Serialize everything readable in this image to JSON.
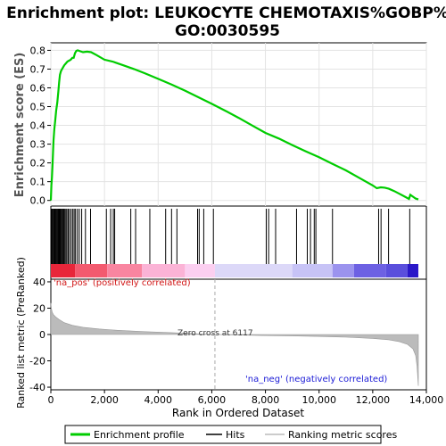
{
  "chart_data": {
    "type": "line",
    "title": "Enrichment plot: LEUKOCYTE CHEMOTAXIS%GOBP%\nGO:0030595",
    "xlabel": "Rank in Ordered Dataset",
    "xlim": [
      0,
      14000
    ],
    "x_ticks": [
      "0",
      "2,000",
      "4,000",
      "6,000",
      "8,000",
      "10,000",
      "12,000",
      "14,000"
    ],
    "x_tick_values": [
      0,
      2000,
      4000,
      6000,
      8000,
      10000,
      12000,
      14000
    ],
    "es_panel": {
      "ylabel": "Enrichment score (ES)",
      "ylim": [
        -0.03,
        0.84
      ],
      "y_ticks": [
        "0.0",
        "0.1",
        "0.2",
        "0.3",
        "0.4",
        "0.5",
        "0.6",
        "0.7",
        "0.8"
      ],
      "y_tick_values": [
        0.0,
        0.1,
        0.2,
        0.3,
        0.4,
        0.5,
        0.6,
        0.7,
        0.8
      ],
      "series": [
        {
          "name": "Enrichment profile",
          "color": "#00cc00",
          "x": [
            0,
            20,
            40,
            60,
            80,
            100,
            130,
            160,
            200,
            240,
            280,
            310,
            340,
            380,
            420,
            460,
            500,
            560,
            620,
            680,
            740,
            800,
            850,
            900,
            950,
            1000,
            1100,
            1200,
            1350,
            1500,
            1700,
            2000,
            2300,
            2700,
            3100,
            3500,
            4000,
            4500,
            5000,
            5500,
            6000,
            6500,
            7000,
            7500,
            8000,
            8500,
            9000,
            9500,
            10000,
            10500,
            11000,
            11500,
            12000,
            12150,
            12300,
            12450,
            12600,
            12800,
            13000,
            13200,
            13350,
            13400,
            13500,
            13600,
            13700
          ],
          "y": [
            0.0,
            0.08,
            0.12,
            0.18,
            0.25,
            0.32,
            0.38,
            0.42,
            0.48,
            0.52,
            0.58,
            0.63,
            0.67,
            0.69,
            0.7,
            0.71,
            0.72,
            0.73,
            0.74,
            0.745,
            0.75,
            0.76,
            0.76,
            0.785,
            0.797,
            0.8,
            0.795,
            0.79,
            0.793,
            0.79,
            0.775,
            0.75,
            0.74,
            0.72,
            0.7,
            0.678,
            0.648,
            0.618,
            0.585,
            0.55,
            0.515,
            0.478,
            0.44,
            0.4,
            0.36,
            0.33,
            0.295,
            0.262,
            0.23,
            0.195,
            0.16,
            0.12,
            0.08,
            0.065,
            0.07,
            0.068,
            0.062,
            0.05,
            0.035,
            0.02,
            0.008,
            0.03,
            0.02,
            0.01,
            0.005
          ]
        }
      ]
    },
    "hits": {
      "name": "Hits",
      "positions": [
        30,
        60,
        90,
        120,
        150,
        180,
        210,
        240,
        270,
        300,
        330,
        360,
        380,
        410,
        450,
        480,
        520,
        560,
        600,
        650,
        700,
        760,
        820,
        870,
        920,
        990,
        1060,
        1150,
        1290,
        1480,
        2070,
        2230,
        2330,
        2380,
        2980,
        3160,
        3690,
        4280,
        4500,
        4700,
        5470,
        5530,
        5700,
        6060,
        8030,
        8120,
        8380,
        9160,
        9560,
        9680,
        9820,
        9880,
        10500,
        12220,
        12310,
        12590,
        13380
      ]
    },
    "rank_panel": {
      "ylabel": "Ranked list metric (PreRanked)",
      "ylim": [
        -42,
        42
      ],
      "y_ticks": [
        "40",
        "20",
        "0",
        "-20",
        "-40"
      ],
      "y_tick_values": [
        40,
        20,
        0,
        -20,
        -40
      ],
      "series": [
        {
          "name": "Ranking metric scores",
          "color": "#bbbbbb",
          "x": [
            0,
            20,
            50,
            100,
            200,
            300,
            500,
            800,
            1200,
            1800,
            2500,
            3500,
            4500,
            5500,
            6117,
            7000,
            8000,
            9000,
            10000,
            11000,
            12000,
            12600,
            13000,
            13300,
            13500,
            13600,
            13650,
            13700
          ],
          "y": [
            24,
            20,
            17,
            15,
            13,
            11.5,
            9,
            7,
            5.5,
            4.2,
            3.2,
            2.2,
            1.4,
            0.5,
            0,
            -0.4,
            -0.8,
            -1.1,
            -1.5,
            -2,
            -3,
            -4,
            -5.5,
            -7.5,
            -11,
            -16,
            -24,
            -39
          ]
        }
      ],
      "annotations": {
        "pos": "'na_pos' (positively correlated)",
        "neg": "'na_neg' (negatively correlated)",
        "zero": "Zero cross at 6117"
      },
      "zero_cross": 6117
    },
    "heatmap_segments": [
      {
        "start": 0,
        "end": 900,
        "color": "#e8263a"
      },
      {
        "start": 900,
        "end": 2100,
        "color": "#f35a6f"
      },
      {
        "start": 2100,
        "end": 3400,
        "color": "#f985a0"
      },
      {
        "start": 3400,
        "end": 5000,
        "color": "#fbb3d6"
      },
      {
        "start": 5000,
        "end": 6117,
        "color": "#fbcff0"
      },
      {
        "start": 6117,
        "end": 9000,
        "color": "#dcd8f8"
      },
      {
        "start": 9000,
        "end": 10500,
        "color": "#c7c3f6"
      },
      {
        "start": 10500,
        "end": 11300,
        "color": "#9b93ee"
      },
      {
        "start": 11300,
        "end": 12500,
        "color": "#6d61e3"
      },
      {
        "start": 12500,
        "end": 13300,
        "color": "#5a4fdc"
      },
      {
        "start": 13300,
        "end": 13700,
        "color": "#2a18c8"
      }
    ],
    "legend": {
      "placement": "bottom",
      "items": [
        {
          "label": "Enrichment profile",
          "color": "#00cc00"
        },
        {
          "label": "Hits",
          "color": "#000000"
        },
        {
          "label": "Ranking metric scores",
          "color": "#bbbbbb"
        }
      ]
    }
  }
}
